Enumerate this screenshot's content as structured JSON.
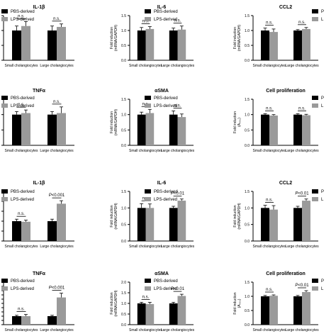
{
  "figure": {
    "series_colors": {
      "PBS-derived": "#000000",
      "LPS-derived": "#9a9a9a"
    },
    "error_bar_color": "#000000"
  },
  "chart_data": [
    {
      "type": "bar",
      "title": "IL-1β",
      "ylabel": "",
      "categories": [
        "Small cholangiocytes",
        "Large cholangiocytes"
      ],
      "series": [
        {
          "name": "PBS-derived",
          "values": [
            1.0,
            1.0
          ],
          "errors": [
            0.15,
            0.15
          ]
        },
        {
          "name": "LPS-derived",
          "values": [
            1.15,
            1.12
          ],
          "errors": [
            0.15,
            0.1
          ]
        }
      ],
      "annotations": [
        "n.s.",
        "n.s."
      ],
      "ylim": [
        0,
        1.5
      ],
      "yticks": [],
      "legend": "right",
      "legend_items": [
        "PBS-derived",
        "LPS-derived"
      ]
    },
    {
      "type": "bar",
      "title": "IL-6",
      "ylabel": "Fold induction (mRNA/GAPDH)",
      "categories": [
        "Small cholangiocytes",
        "Large cholangiocytes"
      ],
      "series": [
        {
          "name": "PBS-derived",
          "values": [
            1.0,
            1.0
          ],
          "errors": [
            0.1,
            0.08
          ]
        },
        {
          "name": "LPS-derived",
          "values": [
            1.05,
            1.03
          ],
          "errors": [
            0.08,
            0.12
          ]
        }
      ],
      "annotations": [
        "n.s.",
        "n.s."
      ],
      "ylim": [
        0,
        1.5
      ],
      "yticks": [
        "0.0",
        "0.5",
        "1.0",
        "1.5"
      ],
      "legend": "right",
      "legend_items": [
        "PBS-derived",
        "LPS-derived"
      ]
    },
    {
      "type": "bar",
      "title": "CCL2",
      "ylabel": "Fold induction (mRNA/GAPDH)",
      "categories": [
        "Small cholangiocytes",
        "Large cholangiocytes"
      ],
      "series": [
        {
          "name": "PBS-derived",
          "values": [
            1.0,
            1.0
          ],
          "errors": [
            0.08,
            0.03
          ]
        },
        {
          "name": "LPS-derived",
          "values": [
            0.95,
            1.05
          ],
          "errors": [
            0.1,
            0.05
          ]
        }
      ],
      "annotations": [
        "n.s.",
        "n.s."
      ],
      "ylim": [
        0,
        1.5
      ],
      "yticks": [
        "0.0",
        "0.5",
        "1.0",
        "1.5"
      ],
      "legend": "right",
      "legend_items": [
        "P",
        "L"
      ]
    },
    {
      "type": "bar",
      "title": "TNFα",
      "ylabel": "",
      "categories": [
        "Small cholangiocytes",
        "Large cholangiocytes"
      ],
      "series": [
        {
          "name": "PBS-derived",
          "values": [
            1.0,
            1.0
          ],
          "errors": [
            0.1,
            0.1
          ]
        },
        {
          "name": "LPS-derived",
          "values": [
            1.05,
            1.05
          ],
          "errors": [
            0.1,
            0.2
          ]
        }
      ],
      "annotations": [
        "n.s.",
        "n.s."
      ],
      "ylim": [
        0,
        1.5
      ],
      "yticks": [],
      "legend": "right",
      "legend_items": [
        "PBS-derived",
        "LPS-derived"
      ]
    },
    {
      "type": "bar",
      "title": "αSMA",
      "ylabel": "Fold induction (mRNA/GAPDH)",
      "categories": [
        "Small cholangiocytes",
        "Large cholangiocytes"
      ],
      "series": [
        {
          "name": "PBS-derived",
          "values": [
            1.0,
            1.0
          ],
          "errors": [
            0.08,
            0.12
          ]
        },
        {
          "name": "LPS-derived",
          "values": [
            1.05,
            0.92
          ],
          "errors": [
            0.12,
            0.1
          ]
        }
      ],
      "annotations": [
        "n.s.",
        "n.s."
      ],
      "ylim": [
        0,
        1.5
      ],
      "yticks": [
        "0.0",
        "0.5",
        "1.0",
        "1.5"
      ],
      "legend": "right",
      "legend_items": [
        "PBS-derived",
        "LPS-derived"
      ]
    },
    {
      "type": "bar",
      "title": "Cell proliferation",
      "ylabel": "Fold induction (A₄₅₀)",
      "categories": [
        "Small cholangiocytes",
        "Large cholangiocytes"
      ],
      "series": [
        {
          "name": "PBS-derived",
          "values": [
            1.0,
            1.0
          ],
          "errors": [
            0.03,
            0.03
          ]
        },
        {
          "name": "LPS-derived",
          "values": [
            0.97,
            0.98
          ],
          "errors": [
            0.03,
            0.03
          ]
        }
      ],
      "annotations": [
        "n.s.",
        "n.s."
      ],
      "ylim": [
        0,
        1.5
      ],
      "yticks": [
        "0.0",
        "0.5",
        "1.0",
        "1.5"
      ],
      "legend": "right",
      "legend_items": [
        "P",
        "L"
      ]
    },
    {
      "type": "bar",
      "title": "IL-1β",
      "ylabel": "",
      "categories": [
        "Small cholangiocytes",
        "Large cholangiocytes"
      ],
      "series": [
        {
          "name": "PBS-derived",
          "values": [
            1.0,
            1.0
          ],
          "errors": [
            0.1,
            0.1
          ]
        },
        {
          "name": "LPS-derived",
          "values": [
            0.97,
            1.88
          ],
          "errors": [
            0.08,
            0.15
          ]
        }
      ],
      "annotations": [
        "n.s.",
        "P<0.001"
      ],
      "ylim": [
        0,
        2.5
      ],
      "yticks": [],
      "legend": "right",
      "legend_items": [
        "PBS-derived",
        "LPS-derived"
      ]
    },
    {
      "type": "bar",
      "title": "IL-6",
      "ylabel": "Fold induction (mRNA/GAPDH)",
      "categories": [
        "Small cholangiocytes",
        "Large cholangiocytes"
      ],
      "series": [
        {
          "name": "PBS-derived",
          "values": [
            1.0,
            1.0
          ],
          "errors": [
            0.13,
            0.05
          ]
        },
        {
          "name": "LPS-derived",
          "values": [
            1.0,
            1.22
          ],
          "errors": [
            0.12,
            0.05
          ]
        }
      ],
      "annotations": [
        "n.s.",
        "P<0.01"
      ],
      "ylim": [
        0,
        1.5
      ],
      "yticks": [
        "0.0",
        "0.5",
        "1.0",
        "1.5"
      ],
      "legend": "right",
      "legend_items": [
        "PBS-derived",
        "LPS-derived"
      ]
    },
    {
      "type": "bar",
      "title": "CCL2",
      "ylabel": "Fold induction (mRNA/GAPDH)",
      "categories": [
        "Small cholangiocytes",
        "Large cholangiocytes"
      ],
      "series": [
        {
          "name": "PBS-derived",
          "values": [
            1.0,
            1.0
          ],
          "errors": [
            0.08,
            0.05
          ]
        },
        {
          "name": "LPS-derived",
          "values": [
            0.95,
            1.22
          ],
          "errors": [
            0.12,
            0.05
          ]
        }
      ],
      "annotations": [
        "n.s.",
        "P<0.01"
      ],
      "ylim": [
        0,
        1.5
      ],
      "yticks": [
        "0.0",
        "0.5",
        "1.0",
        "1.5"
      ],
      "legend": "right",
      "legend_items": [
        "P",
        "L"
      ]
    },
    {
      "type": "bar",
      "title": "TNFα",
      "ylabel": "",
      "categories": [
        "Small cholangiocytes",
        "Large cholangiocytes"
      ],
      "series": [
        {
          "name": "PBS-derived",
          "values": [
            1.0,
            1.0
          ],
          "errors": [
            0.1,
            0.1
          ]
        },
        {
          "name": "LPS-derived",
          "values": [
            1.0,
            3.2
          ],
          "errors": [
            0.2,
            0.5
          ]
        }
      ],
      "annotations": [
        "n.s.",
        "P<0.001"
      ],
      "ylim": [
        0,
        5
      ],
      "yticks": [],
      "legend": "right",
      "legend_items": [
        "PBS-derived",
        "LPS-derived"
      ]
    },
    {
      "type": "bar",
      "title": "αSMA",
      "ylabel": "Fold induction (mRNA/GAPDH)",
      "categories": [
        "Small cholangiocytes",
        "Large cholangiocytes"
      ],
      "series": [
        {
          "name": "PBS-derived",
          "values": [
            1.0,
            1.0
          ],
          "errors": [
            0.05,
            0.05
          ]
        },
        {
          "name": "LPS-derived",
          "values": [
            0.97,
            1.35
          ],
          "errors": [
            0.08,
            0.08
          ]
        }
      ],
      "annotations": [
        "n.s.",
        "P<0.01"
      ],
      "ylim": [
        0,
        2.0
      ],
      "yticks": [
        "0.0",
        "0.5",
        "1.0",
        "1.5",
        "2.0"
      ],
      "legend": "right",
      "legend_items": [
        "PBS-derived",
        "LPS-derived"
      ]
    },
    {
      "type": "bar",
      "title": "Cell proliferation",
      "ylabel": "Fold induction (A₄₅₀)",
      "categories": [
        "Small cholangiocytes",
        "Large cholangiocytes"
      ],
      "series": [
        {
          "name": "PBS-derived",
          "values": [
            1.0,
            1.0
          ],
          "errors": [
            0.03,
            0.03
          ]
        },
        {
          "name": "LPS-derived",
          "values": [
            1.02,
            1.15
          ],
          "errors": [
            0.03,
            0.05
          ]
        }
      ],
      "annotations": [
        "n.s.",
        "P<0.01"
      ],
      "ylim": [
        0,
        1.5
      ],
      "yticks": [
        "0.0",
        "0.5",
        "1.0",
        "1.5"
      ],
      "legend": "right",
      "legend_items": [
        "P",
        "L"
      ]
    }
  ]
}
